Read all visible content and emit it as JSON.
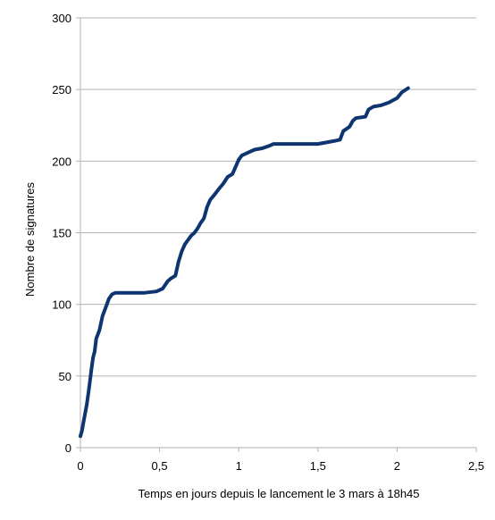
{
  "chart_data": {
    "type": "line",
    "title": "",
    "xlabel": "Temps en jours depuis le lancement le 3 mars à 18h45",
    "ylabel": "Nombre de signatures",
    "xlim": [
      0,
      2.5
    ],
    "ylim": [
      0,
      300
    ],
    "x_ticks": [
      "0",
      "0,5",
      "1",
      "1,5",
      "2",
      "2,5"
    ],
    "y_ticks": [
      "0",
      "50",
      "100",
      "150",
      "200",
      "250",
      "300"
    ],
    "grid": "horizontal",
    "legend": "none",
    "line_color": "#0e3570",
    "series": [
      {
        "x": [
          0.0,
          0.01,
          0.02,
          0.03,
          0.04,
          0.05,
          0.06,
          0.07,
          0.08,
          0.09,
          0.1,
          0.12,
          0.14,
          0.16,
          0.18,
          0.2,
          0.22,
          0.25,
          0.3,
          0.4,
          0.48,
          0.52,
          0.55,
          0.57,
          0.6,
          0.62,
          0.64,
          0.66,
          0.68,
          0.7,
          0.72,
          0.74,
          0.76,
          0.78,
          0.8,
          0.82,
          0.85,
          0.87,
          0.9,
          0.93,
          0.96,
          0.98,
          1.0,
          1.02,
          1.04,
          1.06,
          1.1,
          1.15,
          1.2,
          1.22,
          1.3,
          1.4,
          1.5,
          1.55,
          1.6,
          1.64,
          1.66,
          1.7,
          1.72,
          1.74,
          1.8,
          1.82,
          1.85,
          1.9,
          1.95,
          2.0,
          2.03,
          2.07
        ],
        "y": [
          8,
          12,
          18,
          24,
          30,
          38,
          46,
          55,
          63,
          67,
          76,
          82,
          92,
          98,
          104,
          107,
          108,
          108,
          108,
          108,
          109,
          111,
          116,
          118,
          120,
          130,
          137,
          142,
          145,
          148,
          150,
          153,
          157,
          160,
          168,
          173,
          177,
          180,
          184,
          189,
          191,
          196,
          201,
          204,
          205,
          206,
          208,
          209,
          211,
          212,
          212,
          212,
          212,
          213,
          214,
          215,
          221,
          224,
          228,
          230,
          231,
          236,
          238,
          239,
          241,
          244,
          248,
          251
        ]
      }
    ]
  }
}
